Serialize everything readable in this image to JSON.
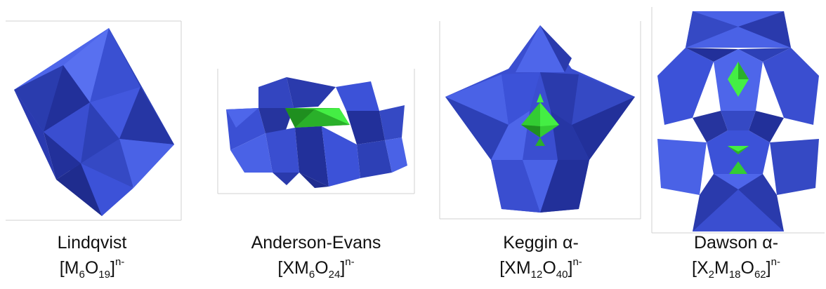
{
  "colors": {
    "blue_light": "#4a62e6",
    "blue_mid": "#3549c4",
    "blue_dark": "#22309a",
    "green_light": "#44ee44",
    "green_dark": "#22aa22"
  },
  "structures": [
    {
      "name": "Lindqvist",
      "formula": {
        "open": "[M",
        "s1": "6",
        "el2": "O",
        "s2": "19",
        "close": "]",
        "charge": "n-"
      }
    },
    {
      "name": "Anderson-Evans",
      "formula": {
        "open": "[XM",
        "s1": "6",
        "el2": "O",
        "s2": "24",
        "close": "]",
        "charge": "n-"
      }
    },
    {
      "name": "Keggin α-",
      "formula": {
        "open": "[XM",
        "s1": "12",
        "el2": "O",
        "s2": "40",
        "close": "]",
        "charge": "n-"
      }
    },
    {
      "name": "Dawson α-",
      "formula": {
        "open": "[X",
        "s1": "2",
        "el2": "M",
        "s2": "18",
        "el3": "O",
        "s3": "62",
        "close": "]",
        "charge": "n-"
      }
    }
  ]
}
